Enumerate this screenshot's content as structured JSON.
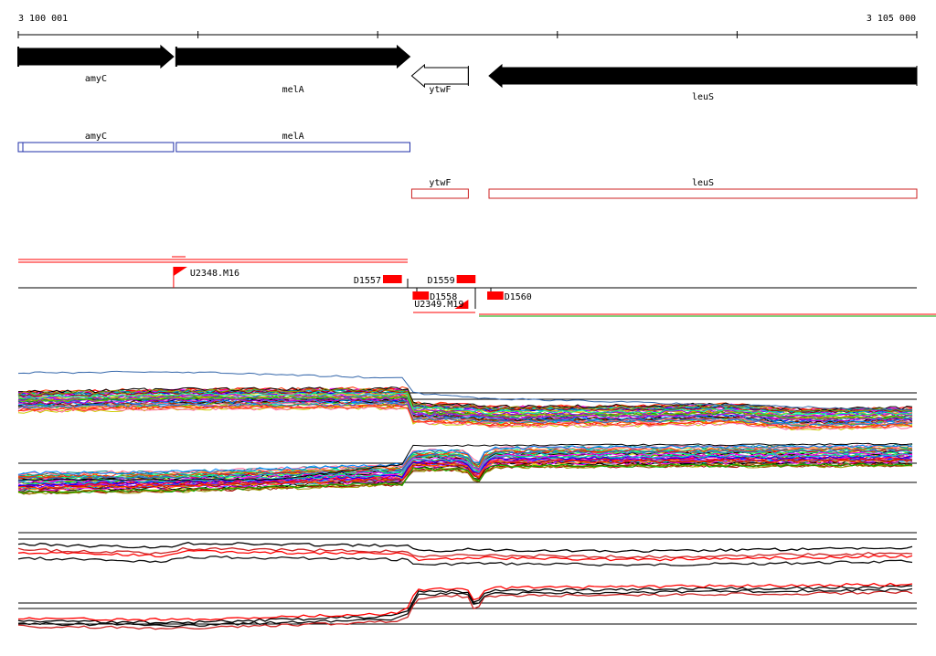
{
  "axis": {
    "start_label": "3 100 001",
    "end_label": "3 105 000",
    "start": 3100001,
    "end": 3105000
  },
  "genes": [
    {
      "name": "amyC",
      "strand": "+",
      "start": 3100001,
      "end": 3100865,
      "filled": true
    },
    {
      "name": "melA",
      "strand": "+",
      "start": 3100880,
      "end": 3102180,
      "filled": true
    },
    {
      "name": "ytwF",
      "strand": "-",
      "start": 3102190,
      "end": 3102505,
      "filled": false
    },
    {
      "name": "leuS",
      "strand": "-",
      "start": 3102620,
      "end": 3105000,
      "filled": true
    }
  ],
  "transcripts": {
    "plus_color": "#1f2fa8",
    "minus_color": "#cc2222",
    "plus": [
      {
        "name": "amyC",
        "start": 3100001,
        "end": 3100865
      },
      {
        "name": "melA",
        "start": 3100880,
        "end": 3102180
      }
    ],
    "minus": [
      {
        "name": "ytwF",
        "start": 3102190,
        "end": 3102505
      },
      {
        "name": "leuS",
        "start": 3102620,
        "end": 3105000
      }
    ]
  },
  "features": {
    "marker_color": "#ff0000",
    "items": [
      {
        "label": "U2348.M16",
        "type": "flag",
        "row": "top",
        "pos": 3100865
      },
      {
        "label": "D1557",
        "type": "box",
        "row": "top",
        "start": 3102030,
        "end": 3102135
      },
      {
        "label": "D1559",
        "type": "box",
        "row": "top",
        "start": 3102440,
        "end": 3102545
      },
      {
        "label": "D1558",
        "type": "box",
        "row": "bottom",
        "start": 3102195,
        "end": 3102285
      },
      {
        "label": "U2349.M19",
        "type": "flag",
        "row": "bottom",
        "pos": 3102505
      },
      {
        "label": "D1560",
        "type": "box",
        "row": "bottom",
        "start": 3102610,
        "end": 3102700
      }
    ]
  },
  "tracks": {
    "palette": [
      "#ff0000",
      "#00aa00",
      "#0000ff",
      "#ff00ff",
      "#00cccc",
      "#cccc00",
      "#ff8800",
      "#8800ff",
      "#008888",
      "#884400",
      "#ff6699",
      "#66cc00",
      "#0088ff",
      "#aa0000",
      "#000000",
      "#999900",
      "#00ff88",
      "#cc00cc",
      "#3366cc",
      "#ff3300"
    ],
    "pair_colors": [
      "#000000",
      "#ff0000",
      "#cc2222",
      "#111111"
    ]
  }
}
